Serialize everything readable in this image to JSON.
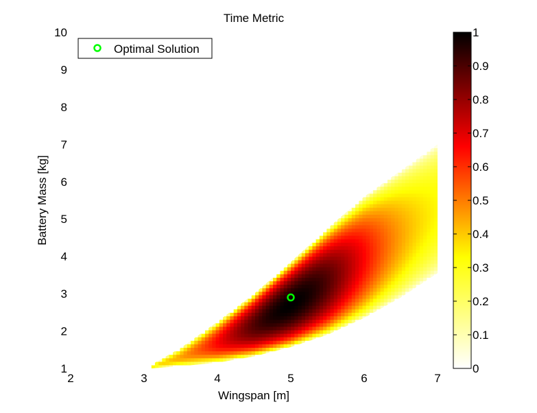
{
  "chart_data": {
    "type": "heatmap",
    "title": "Time Metric",
    "xlabel": "Wingspan [m]",
    "ylabel": "Battery Mass [kg]",
    "xlim": [
      2,
      7
    ],
    "ylim": [
      1,
      10
    ],
    "xticks": [
      "2",
      "3",
      "4",
      "5",
      "6",
      "7"
    ],
    "yticks": [
      "1",
      "2",
      "3",
      "4",
      "5",
      "6",
      "7",
      "8",
      "9",
      "10"
    ],
    "colorbar": {
      "range": [
        0,
        1
      ],
      "ticks": [
        "0",
        "0.1",
        "0.2",
        "0.3",
        "0.4",
        "0.5",
        "0.6",
        "0.7",
        "0.8",
        "0.9",
        "1"
      ],
      "colormap": "hot (inverted)",
      "stops": [
        "#ffffff",
        "#ffff00",
        "#ff0000",
        "#000000"
      ]
    },
    "legend": {
      "entries": [
        {
          "label": "Optimal Solution",
          "marker": "circle",
          "color": "#00ff00"
        }
      ],
      "location": "top-left"
    },
    "optimal_point": {
      "x": 5.0,
      "y": 2.9,
      "value": 1.0
    },
    "feasible_region": {
      "x_start": 3.1,
      "x_end": 7.0,
      "lower_boundary": [
        [
          3.1,
          1.0
        ],
        [
          3.5,
          1.06
        ],
        [
          4.0,
          1.15
        ],
        [
          4.5,
          1.32
        ],
        [
          5.0,
          1.57
        ],
        [
          5.5,
          1.9
        ],
        [
          6.0,
          2.35
        ],
        [
          6.5,
          2.9
        ],
        [
          7.0,
          3.55
        ]
      ],
      "upper_boundary": [
        [
          3.1,
          1.1
        ],
        [
          3.5,
          1.55
        ],
        [
          4.0,
          2.25
        ],
        [
          4.5,
          3.0
        ],
        [
          5.0,
          3.85
        ],
        [
          5.5,
          4.75
        ],
        [
          6.0,
          5.6
        ],
        [
          6.5,
          6.3
        ],
        [
          7.0,
          7.0
        ]
      ]
    }
  }
}
